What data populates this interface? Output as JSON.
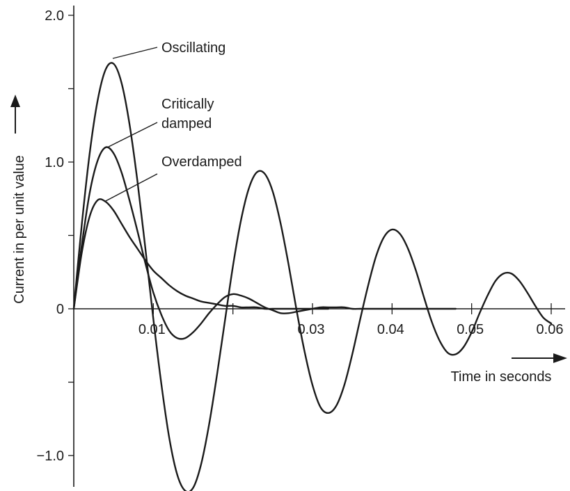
{
  "chart_data": {
    "type": "line",
    "title": "",
    "xlabel": "Time in seconds",
    "ylabel": "Current in per unit value",
    "xlim": [
      0,
      0.06
    ],
    "ylim": [
      -1.2,
      2.0
    ],
    "x_ticks": [
      0.01,
      0.02,
      0.03,
      0.04,
      0.05,
      0.06
    ],
    "x_tick_labels": [
      "0.01",
      "",
      "0.03",
      "0.04",
      "0.05",
      "0.06"
    ],
    "y_ticks": [
      -1.0,
      -0.5,
      0,
      0.5,
      1.0,
      1.5,
      2.0
    ],
    "y_tick_labels": [
      "−1.0",
      "",
      "0",
      "",
      "1.0",
      "",
      "2.0"
    ],
    "grid": false,
    "legend": "none",
    "annotations": [
      "Oscillating",
      "Critically damped",
      "Overdamped"
    ],
    "series": [
      {
        "name": "Oscillating",
        "x": [
          0,
          0.001,
          0.002,
          0.003,
          0.004,
          0.005,
          0.006,
          0.007,
          0.008,
          0.009,
          0.01,
          0.011,
          0.012,
          0.013,
          0.014,
          0.015,
          0.016,
          0.017,
          0.018,
          0.019,
          0.02,
          0.021,
          0.022,
          0.023,
          0.024,
          0.025,
          0.026,
          0.027,
          0.028,
          0.029,
          0.03,
          0.031,
          0.032,
          0.033,
          0.034,
          0.035,
          0.036,
          0.037,
          0.038,
          0.039,
          0.04,
          0.041,
          0.042,
          0.043,
          0.044,
          0.045,
          0.046,
          0.047,
          0.048,
          0.049,
          0.05,
          0.051,
          0.052,
          0.053,
          0.054,
          0.055,
          0.056,
          0.057,
          0.058,
          0.059,
          0.06
        ],
        "y": [
          0,
          0.57,
          1.06,
          1.42,
          1.63,
          1.67,
          1.54,
          1.26,
          0.87,
          0.41,
          -0.07,
          -0.51,
          -0.88,
          -1.13,
          -1.24,
          -1.22,
          -1.06,
          -0.79,
          -0.45,
          -0.08,
          0.29,
          0.6,
          0.82,
          0.93,
          0.92,
          0.8,
          0.58,
          0.3,
          -0.01,
          -0.29,
          -0.52,
          -0.67,
          -0.71,
          -0.66,
          -0.52,
          -0.31,
          -0.07,
          0.16,
          0.36,
          0.49,
          0.54,
          0.51,
          0.41,
          0.26,
          0.08,
          -0.09,
          -0.22,
          -0.3,
          -0.31,
          -0.26,
          -0.16,
          -0.03,
          0.09,
          0.19,
          0.24,
          0.24,
          0.19,
          0.11,
          0.02,
          -0.06,
          -0.1
        ]
      },
      {
        "name": "Critically damped",
        "x": [
          0,
          0.001,
          0.002,
          0.003,
          0.004,
          0.005,
          0.006,
          0.007,
          0.008,
          0.009,
          0.01,
          0.011,
          0.012,
          0.013,
          0.014,
          0.015,
          0.016,
          0.017,
          0.018,
          0.019,
          0.02,
          0.021,
          0.022,
          0.023,
          0.024,
          0.025,
          0.026,
          0.027,
          0.028,
          0.029,
          0.03,
          0.031,
          0.032,
          0.033,
          0.034,
          0.035,
          0.036,
          0.037,
          0.038,
          0.039,
          0.04,
          0.041,
          0.042,
          0.043,
          0.044,
          0.045,
          0.046,
          0.047,
          0.048
        ],
        "y": [
          0,
          0.43,
          0.79,
          1.01,
          1.1,
          1.06,
          0.93,
          0.74,
          0.53,
          0.31,
          0.11,
          -0.04,
          -0.15,
          -0.2,
          -0.2,
          -0.16,
          -0.1,
          -0.03,
          0.03,
          0.08,
          0.1,
          0.09,
          0.07,
          0.04,
          0.01,
          -0.01,
          -0.03,
          -0.03,
          -0.02,
          -0.01,
          0,
          0.01,
          0.01,
          0.01,
          0.01,
          0,
          0,
          0,
          0,
          0,
          0,
          0,
          0,
          0,
          0,
          0,
          0,
          0,
          0
        ]
      },
      {
        "name": "Overdamped",
        "x": [
          0,
          0.001,
          0.002,
          0.003,
          0.004,
          0.005,
          0.006,
          0.007,
          0.008,
          0.009,
          0.01,
          0.011,
          0.012,
          0.013,
          0.014,
          0.015,
          0.016,
          0.017,
          0.018,
          0.019,
          0.02,
          0.021,
          0.022,
          0.023,
          0.024,
          0.025,
          0.026,
          0.027,
          0.028,
          0.029,
          0.03,
          0.031,
          0.032
        ],
        "y": [
          0,
          0.38,
          0.63,
          0.74,
          0.73,
          0.67,
          0.58,
          0.49,
          0.41,
          0.33,
          0.26,
          0.21,
          0.16,
          0.12,
          0.09,
          0.07,
          0.05,
          0.04,
          0.03,
          0.02,
          0.02,
          0.01,
          0.01,
          0.01,
          0,
          0,
          0,
          0,
          0,
          0,
          0,
          0,
          0
        ]
      }
    ]
  }
}
